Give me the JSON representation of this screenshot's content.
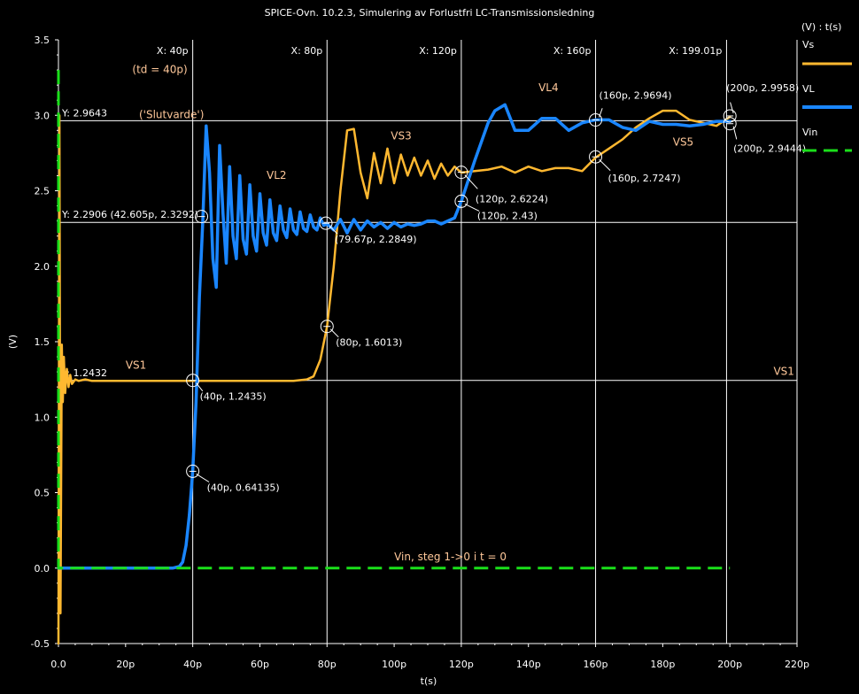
{
  "colors": {
    "background": "#000000",
    "axis": "#ffffff",
    "grid": "#ffffff",
    "vs": "#ffb830",
    "vl": "#1a86ff",
    "vin": "#1adf1a",
    "annotation": "#ffc89a"
  },
  "chart_data": {
    "type": "line",
    "title": "SPICE-Ovn. 10.2.3, Simulering av Forlustfri LC-Transmissionsledning",
    "xlabel": "t(s)",
    "ylabel": "(V)",
    "legend_title": "(V) : t(s)",
    "legend_position": "right",
    "grid": true,
    "xlim": [
      0,
      220
    ],
    "ylim": [
      -0.5,
      3.5
    ],
    "x_unit": "p",
    "x_ticks": [
      "0.0",
      "20p",
      "40p",
      "60p",
      "80p",
      "100p",
      "120p",
      "140p",
      "160p",
      "180p",
      "200p",
      "220p"
    ],
    "y_ticks": [
      "-0.5",
      "0.0",
      "0.5",
      "1.0",
      "1.5",
      "2.0",
      "2.5",
      "3.0",
      "3.5"
    ],
    "series": [
      {
        "name": "Vs",
        "color": "#ffb830",
        "style": "solid",
        "x": [
          0,
          0.3,
          0.6,
          1,
          1.3,
          1.6,
          2,
          2.5,
          3,
          3.5,
          4,
          5,
          6,
          8,
          10,
          20,
          30,
          40,
          50,
          60,
          70,
          74,
          76,
          78,
          80,
          82,
          84,
          86,
          88,
          90,
          92,
          94,
          96,
          98,
          100,
          102,
          104,
          106,
          108,
          110,
          112,
          114,
          116,
          118,
          120,
          124,
          128,
          132,
          136,
          140,
          144,
          148,
          152,
          156,
          160,
          164,
          168,
          172,
          176,
          180,
          184,
          188,
          192,
          196,
          200
        ],
        "y": [
          -0.5,
          3.0,
          -0.3,
          1.48,
          1.1,
          1.4,
          1.16,
          1.32,
          1.2,
          1.28,
          1.22,
          1.25,
          1.24,
          1.25,
          1.24,
          1.24,
          1.24,
          1.24,
          1.24,
          1.24,
          1.24,
          1.25,
          1.27,
          1.38,
          1.6,
          2.0,
          2.5,
          2.9,
          2.91,
          2.62,
          2.45,
          2.75,
          2.55,
          2.78,
          2.55,
          2.74,
          2.6,
          2.72,
          2.6,
          2.7,
          2.58,
          2.68,
          2.6,
          2.66,
          2.62,
          2.63,
          2.64,
          2.66,
          2.62,
          2.66,
          2.63,
          2.65,
          2.65,
          2.63,
          2.72,
          2.78,
          2.84,
          2.92,
          2.98,
          3.03,
          3.03,
          2.97,
          2.95,
          2.93,
          2.99
        ]
      },
      {
        "name": "VL",
        "color": "#1a86ff",
        "style": "solid",
        "x": [
          0,
          10,
          20,
          30,
          34,
          36,
          37,
          38,
          39,
          40,
          41,
          42,
          43,
          44,
          45,
          46,
          47,
          48,
          49,
          50,
          51,
          52,
          53,
          54,
          55,
          56,
          57,
          58,
          59,
          60,
          61,
          62,
          63,
          64,
          65,
          66,
          67,
          68,
          69,
          70,
          71,
          72,
          73,
          74,
          75,
          76,
          77,
          78,
          79,
          80,
          82,
          84,
          86,
          88,
          90,
          92,
          94,
          96,
          98,
          100,
          102,
          104,
          106,
          108,
          110,
          112,
          114,
          116,
          118,
          120,
          124,
          128,
          130,
          133,
          136,
          140,
          144,
          148,
          152,
          156,
          160,
          164,
          168,
          172,
          176,
          180,
          184,
          188,
          192,
          196,
          200
        ],
        "y": [
          0,
          0,
          0,
          0,
          0,
          0.01,
          0.04,
          0.15,
          0.35,
          0.64,
          1.1,
          1.8,
          2.3,
          2.93,
          2.62,
          2.05,
          1.86,
          2.8,
          2.35,
          2.02,
          2.66,
          2.2,
          2.05,
          2.6,
          2.18,
          2.08,
          2.54,
          2.2,
          2.1,
          2.48,
          2.22,
          2.14,
          2.44,
          2.22,
          2.17,
          2.4,
          2.24,
          2.19,
          2.38,
          2.24,
          2.21,
          2.36,
          2.25,
          2.23,
          2.34,
          2.26,
          2.24,
          2.32,
          2.27,
          2.28,
          2.24,
          2.31,
          2.22,
          2.31,
          2.24,
          2.3,
          2.26,
          2.29,
          2.25,
          2.29,
          2.26,
          2.28,
          2.27,
          2.28,
          2.3,
          2.3,
          2.28,
          2.3,
          2.32,
          2.43,
          2.7,
          2.95,
          3.03,
          3.07,
          2.9,
          2.9,
          2.98,
          2.98,
          2.9,
          2.95,
          2.97,
          2.97,
          2.92,
          2.9,
          2.96,
          2.94,
          2.94,
          2.93,
          2.94,
          2.96,
          2.96
        ]
      },
      {
        "name": "Vin",
        "color": "#1adf1a",
        "style": "dashed",
        "x": [
          0,
          0,
          0,
          200
        ],
        "y": [
          3.3,
          0,
          0,
          0
        ]
      }
    ],
    "cursors_x": [
      {
        "x": 40,
        "label": "X: 40p"
      },
      {
        "x": 80,
        "label": "X: 80p"
      },
      {
        "x": 120,
        "label": "X: 120p"
      },
      {
        "x": 160,
        "label": "X: 160p"
      },
      {
        "x": 199.01,
        "label": "X: 199.01p"
      }
    ],
    "cursors_y": [
      {
        "y": 2.9643,
        "label": "Y: 2.9643"
      },
      {
        "y": 2.2906,
        "label": "Y: 2.2906 (42.605p, 2.3292)"
      },
      {
        "y": 1.2432,
        "label": "Y: 1.2432"
      }
    ],
    "markers": [
      {
        "x": 40,
        "y": 1.2435,
        "label": "(40p, 1.2435)"
      },
      {
        "x": 40,
        "y": 0.64135,
        "label": "(40p, 0.64135)"
      },
      {
        "x": 42.605,
        "y": 2.3292,
        "label": ""
      },
      {
        "x": 79.67,
        "y": 2.2849,
        "label": "(79.67p, 2.2849)"
      },
      {
        "x": 80,
        "y": 1.6013,
        "label": "(80p, 1.6013)"
      },
      {
        "x": 120,
        "y": 2.6224,
        "label": "(120p, 2.6224)"
      },
      {
        "x": 120,
        "y": 2.43,
        "label": "(120p, 2.43)"
      },
      {
        "x": 160,
        "y": 2.9694,
        "label": "(160p, 2.9694)"
      },
      {
        "x": 160,
        "y": 2.7247,
        "label": "(160p, 2.7247)"
      },
      {
        "x": 200,
        "y": 2.9958,
        "label": "(200p, 2.9958)"
      },
      {
        "x": 200,
        "y": 2.9444,
        "label": "(200p, 2.9444)"
      }
    ],
    "annotations": [
      {
        "text": "(td = 40p)",
        "x": 22,
        "y": 3.28
      },
      {
        "text": "('Slutvarde')",
        "x": 24,
        "y": 2.98
      },
      {
        "text": "VS1",
        "x": 20,
        "y": 1.32
      },
      {
        "text": "VS1",
        "x": 213,
        "y": 1.28
      },
      {
        "text": "VL2",
        "x": 62,
        "y": 2.58
      },
      {
        "text": "VS3",
        "x": 99,
        "y": 2.84
      },
      {
        "text": "VL4",
        "x": 143,
        "y": 3.16
      },
      {
        "text": "VS5",
        "x": 183,
        "y": 2.8
      },
      {
        "text": "Vin, steg 1->0 i t = 0",
        "x": 100,
        "y": 0.05
      }
    ]
  }
}
